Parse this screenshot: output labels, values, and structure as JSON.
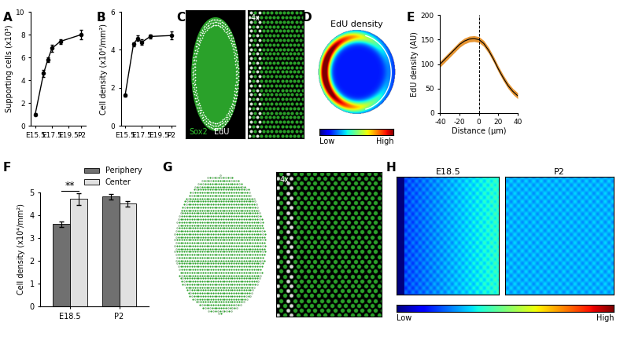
{
  "chart_data": [
    {
      "panel": "A",
      "type": "line",
      "y_label": "Supporting cells (x10³)",
      "x": [
        15.5,
        16.5,
        17.0,
        17.5,
        18.5,
        21.0
      ],
      "values": [
        1.0,
        4.6,
        5.8,
        6.8,
        7.4,
        8.0
      ],
      "errors": [
        0.1,
        0.3,
        0.2,
        0.3,
        0.2,
        0.4
      ],
      "color": "#000000",
      "marker": "o",
      "xlim": [
        15.0,
        21.5
      ],
      "xticks": [
        {
          "value": 15.5,
          "label": "E15.5"
        },
        {
          "value": 17.5,
          "label": "E17.5"
        },
        {
          "value": 19.5,
          "label": "E19.5"
        },
        {
          "value": 21.0,
          "label": "P2"
        }
      ],
      "ylim": [
        0,
        10
      ],
      "yticks": [
        0,
        2,
        4,
        6,
        8,
        10
      ]
    },
    {
      "panel": "B",
      "type": "line",
      "y_label": "Cell density (x10⁴/mm²)",
      "x": [
        15.5,
        16.5,
        17.0,
        17.5,
        18.5,
        21.0
      ],
      "values": [
        1.6,
        4.3,
        4.6,
        4.4,
        4.7,
        4.75
      ],
      "errors": [
        0.05,
        0.1,
        0.15,
        0.15,
        0.1,
        0.2
      ],
      "color": "#000000",
      "marker": "o",
      "xlim": [
        15.0,
        21.5
      ],
      "xticks": [
        {
          "value": 15.5,
          "label": "E15.5"
        },
        {
          "value": 17.5,
          "label": "E17.5"
        },
        {
          "value": 19.5,
          "label": "E19.5"
        },
        {
          "value": 21.0,
          "label": "P2"
        }
      ],
      "ylim": [
        0,
        6
      ],
      "yticks": [
        0,
        2,
        4,
        6
      ]
    },
    {
      "panel": "C",
      "type": "image",
      "labels": [
        {
          "text": "Sox2",
          "color": "#33cc33"
        },
        {
          "text": "EdU",
          "color": "#ffffff"
        }
      ],
      "inset_label": "4x"
    },
    {
      "panel": "D",
      "type": "heatmap",
      "title": "EdU density",
      "colorbar_labels": [
        "Low",
        "High"
      ]
    },
    {
      "panel": "E",
      "type": "line",
      "x_label": "Distance (µm)",
      "y_label": "EdU density (AU)",
      "x": [
        -40,
        -35,
        -30,
        -25,
        -20,
        -15,
        -10,
        -5,
        0,
        5,
        10,
        15,
        20,
        25,
        30,
        35,
        40
      ],
      "values": [
        100,
        110,
        120,
        130,
        140,
        147,
        151,
        152,
        150,
        142,
        128,
        110,
        90,
        72,
        56,
        44,
        35
      ],
      "errors": [
        6,
        6,
        6,
        6,
        6,
        6,
        6,
        6,
        6,
        6,
        6,
        6,
        6,
        6,
        6,
        6,
        6
      ],
      "color": "#e07b00",
      "reference_x": 0,
      "xlim": [
        -40,
        40
      ],
      "xticks": [
        -40,
        -20,
        0,
        20,
        40
      ],
      "ylim": [
        0,
        200
      ],
      "yticks": [
        0,
        50,
        100,
        150,
        200
      ]
    },
    {
      "panel": "F",
      "type": "bar",
      "y_label": "Cell density (x10⁴/mm²)",
      "categories": [
        "E18.5",
        "P2"
      ],
      "series": [
        {
          "name": "Periphery",
          "color": "#707070",
          "values": [
            3.6,
            4.8
          ],
          "errors": [
            0.12,
            0.12
          ]
        },
        {
          "name": "Center",
          "color": "#e0e0e0",
          "values": [
            4.7,
            4.5
          ],
          "errors": [
            0.25,
            0.12
          ]
        }
      ],
      "annotations": [
        {
          "text": "**",
          "category": "E18.5"
        }
      ],
      "legend": "upper right",
      "ylim": [
        0,
        5
      ],
      "yticks": [
        0,
        1,
        2,
        3,
        4,
        5
      ]
    },
    {
      "panel": "G",
      "type": "image",
      "inset_label": "4x"
    },
    {
      "panel": "H",
      "type": "heatmap",
      "titles": [
        "E18.5",
        "P2"
      ],
      "colorbar_labels": [
        "Low",
        "High"
      ]
    }
  ]
}
